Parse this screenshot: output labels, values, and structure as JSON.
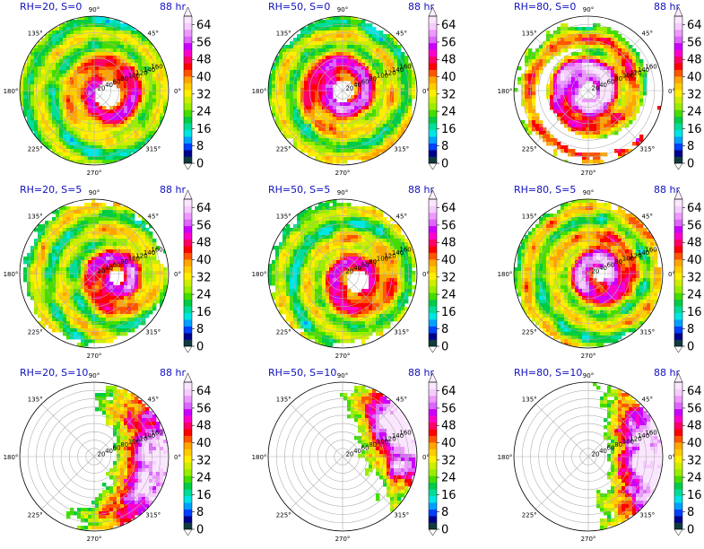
{
  "chart_data": {
    "type": "heatmap",
    "projection": "polar",
    "time_label": "88 hr",
    "angle_ticks": [
      "90°",
      "45°",
      "0°",
      "315°",
      "270°",
      "225°",
      "180°",
      "135°"
    ],
    "angle_tick_degrees": [
      90,
      45,
      0,
      315,
      270,
      225,
      180,
      135
    ],
    "radial_ticks": [
      20,
      40,
      60,
      80,
      100,
      120,
      140,
      160
    ],
    "radial_max": 180,
    "colorbar": {
      "ticks": [
        0,
        8,
        16,
        24,
        32,
        40,
        48,
        56,
        64
      ],
      "range": [
        0,
        68
      ],
      "colors": [
        "#103a40",
        "#00008b",
        "#0040ff",
        "#00a0ff",
        "#00e5e5",
        "#00dd99",
        "#00cc44",
        "#44dd00",
        "#99ee00",
        "#ccee00",
        "#ffee00",
        "#ffcc00",
        "#ffa500",
        "#ff5500",
        "#ff0000",
        "#ff0066",
        "#ff00cc",
        "#cc00ff",
        "#dd66ff",
        "#ee99ff",
        "#f6ccff",
        "#fbe6ff"
      ]
    },
    "panels": [
      {
        "title": "RH=20, S=0",
        "time": "88 hr",
        "pattern": "full",
        "strength": 0.55,
        "eye": 0.18,
        "offset": [
          0.18,
          0.05
        ],
        "cover": 1.0
      },
      {
        "title": "RH=50, S=0",
        "time": "88 hr",
        "pattern": "full",
        "strength": 0.62,
        "eye": 0.15,
        "offset": [
          0.0,
          0.0
        ],
        "cover": 0.95
      },
      {
        "title": "RH=80, S=0",
        "time": "88 hr",
        "pattern": "spiral",
        "strength": 0.78,
        "eye": 0.12,
        "offset": [
          0.0,
          0.0
        ],
        "cover": 0.85
      },
      {
        "title": "RH=20, S=5",
        "time": "88 hr",
        "pattern": "full",
        "strength": 0.6,
        "eye": 0.1,
        "offset": [
          0.3,
          0.05
        ],
        "cover": 0.9
      },
      {
        "title": "RH=50, S=5",
        "time": "88 hr",
        "pattern": "full",
        "strength": 0.58,
        "eye": 0.15,
        "offset": [
          0.2,
          0.1
        ],
        "cover": 0.9
      },
      {
        "title": "RH=80, S=5",
        "time": "88 hr",
        "pattern": "full",
        "strength": 0.68,
        "eye": 0.1,
        "offset": [
          0.15,
          0.0
        ],
        "cover": 0.95
      },
      {
        "title": "RH=20, S=10",
        "time": "88 hr",
        "pattern": "sector",
        "strength": 0.55,
        "eye": 0.0,
        "offset": [
          0.0,
          0.0
        ],
        "sector_center": -10,
        "sector_width": 70,
        "cover": 0.55
      },
      {
        "title": "RH=50, S=10",
        "time": "88 hr",
        "pattern": "sector",
        "strength": 0.6,
        "eye": 0.0,
        "offset": [
          0.0,
          0.0
        ],
        "sector_center": 20,
        "sector_width": 45,
        "cover": 0.5
      },
      {
        "title": "RH=80, S=10",
        "time": "88 hr",
        "pattern": "sector",
        "strength": 0.6,
        "eye": 0.0,
        "offset": [
          0.0,
          0.0
        ],
        "sector_center": 0,
        "sector_width": 55,
        "cover": 0.4
      }
    ]
  }
}
